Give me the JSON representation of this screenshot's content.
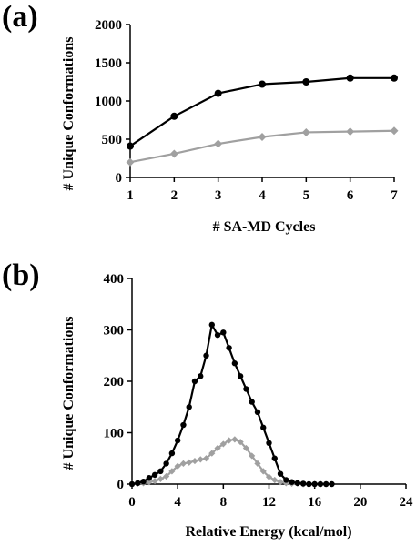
{
  "chart_data": [
    {
      "panel_label": "(a)",
      "type": "line",
      "xlabel": "# SA-MD Cycles",
      "ylabel": "# Unique Conformations",
      "xlim": [
        1,
        7
      ],
      "ylim": [
        0,
        2000
      ],
      "xticks": [
        1,
        2,
        3,
        4,
        5,
        6,
        7
      ],
      "yticks": [
        0,
        500,
        1000,
        1500,
        2000
      ],
      "grid": false,
      "series": [
        {
          "color": "#000000",
          "marker": "circle",
          "x": [
            1,
            2,
            3,
            4,
            5,
            6,
            7
          ],
          "y": [
            410,
            800,
            1100,
            1220,
            1250,
            1300,
            1300
          ]
        },
        {
          "color": "#a0a0a0",
          "marker": "diamond",
          "x": [
            1,
            2,
            3,
            4,
            5,
            6,
            7
          ],
          "y": [
            200,
            310,
            440,
            530,
            590,
            600,
            610
          ]
        }
      ]
    },
    {
      "panel_label": "(b)",
      "type": "line",
      "xlabel": "Relative Energy (kcal/mol)",
      "ylabel": "# Unique Conformations",
      "xlim": [
        0,
        24
      ],
      "ylim": [
        0,
        400
      ],
      "xticks": [
        0,
        4,
        8,
        12,
        16,
        20,
        24
      ],
      "yticks": [
        0,
        100,
        200,
        300,
        400
      ],
      "grid": false,
      "series": [
        {
          "color": "#000000",
          "marker": "circle",
          "x": [
            0,
            0.5,
            1,
            1.5,
            2,
            2.5,
            3,
            3.5,
            4,
            4.5,
            5,
            5.5,
            6,
            6.5,
            7,
            7.5,
            8,
            8.5,
            9,
            9.5,
            10,
            10.5,
            11,
            11.5,
            12,
            12.5,
            13,
            13.5,
            14,
            14.5,
            15,
            15.5,
            16,
            16.5,
            17,
            17.5
          ],
          "y": [
            0,
            2,
            5,
            12,
            18,
            25,
            40,
            60,
            85,
            115,
            150,
            200,
            210,
            250,
            310,
            290,
            295,
            265,
            235,
            210,
            185,
            160,
            140,
            110,
            80,
            50,
            20,
            8,
            4,
            2,
            1,
            0,
            0,
            0,
            0,
            0
          ]
        },
        {
          "color": "#a0a0a0",
          "marker": "diamond",
          "x": [
            0,
            0.5,
            1,
            1.5,
            2,
            2.5,
            3,
            3.5,
            4,
            4.5,
            5,
            5.5,
            6,
            6.5,
            7,
            7.5,
            8,
            8.5,
            9,
            9.5,
            10,
            10.5,
            11,
            11.5,
            12,
            12.5,
            13,
            13.5,
            14,
            14.5,
            15,
            15.5,
            16,
            16.5
          ],
          "y": [
            0,
            1,
            2,
            4,
            6,
            10,
            15,
            25,
            35,
            40,
            42,
            45,
            48,
            50,
            60,
            70,
            78,
            85,
            87,
            82,
            70,
            55,
            40,
            25,
            14,
            8,
            4,
            2,
            1,
            1,
            0,
            0,
            0,
            0
          ]
        }
      ]
    }
  ]
}
